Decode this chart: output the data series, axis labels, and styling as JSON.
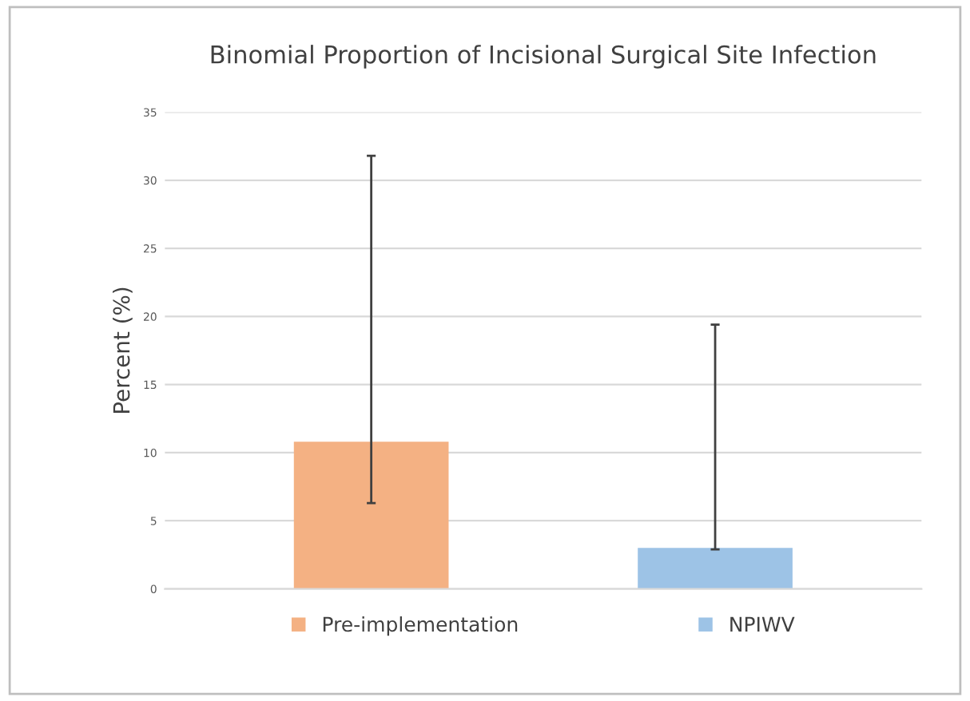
{
  "chart_data": {
    "type": "bar",
    "title": "Binomial Proportion of Incisional Surgical Site Infection",
    "ylabel": "Percent (%)",
    "categories": [
      null,
      null
    ],
    "series": [
      {
        "name": "Pre-implementation",
        "color": "#f4b183",
        "values": [
          10.8,
          null
        ],
        "errors": [
          [
            6.3,
            31.8
          ],
          null
        ]
      },
      {
        "name": "NPIWV",
        "color": "#9dc3e6",
        "values": [
          null,
          3.0
        ],
        "errors": [
          null,
          [
            2.9,
            19.4
          ]
        ]
      }
    ],
    "ylim": [
      0,
      35
    ],
    "yticks": [
      0,
      5,
      10,
      15,
      20,
      25,
      30,
      35
    ],
    "grid": "y",
    "legend": "bottom"
  }
}
